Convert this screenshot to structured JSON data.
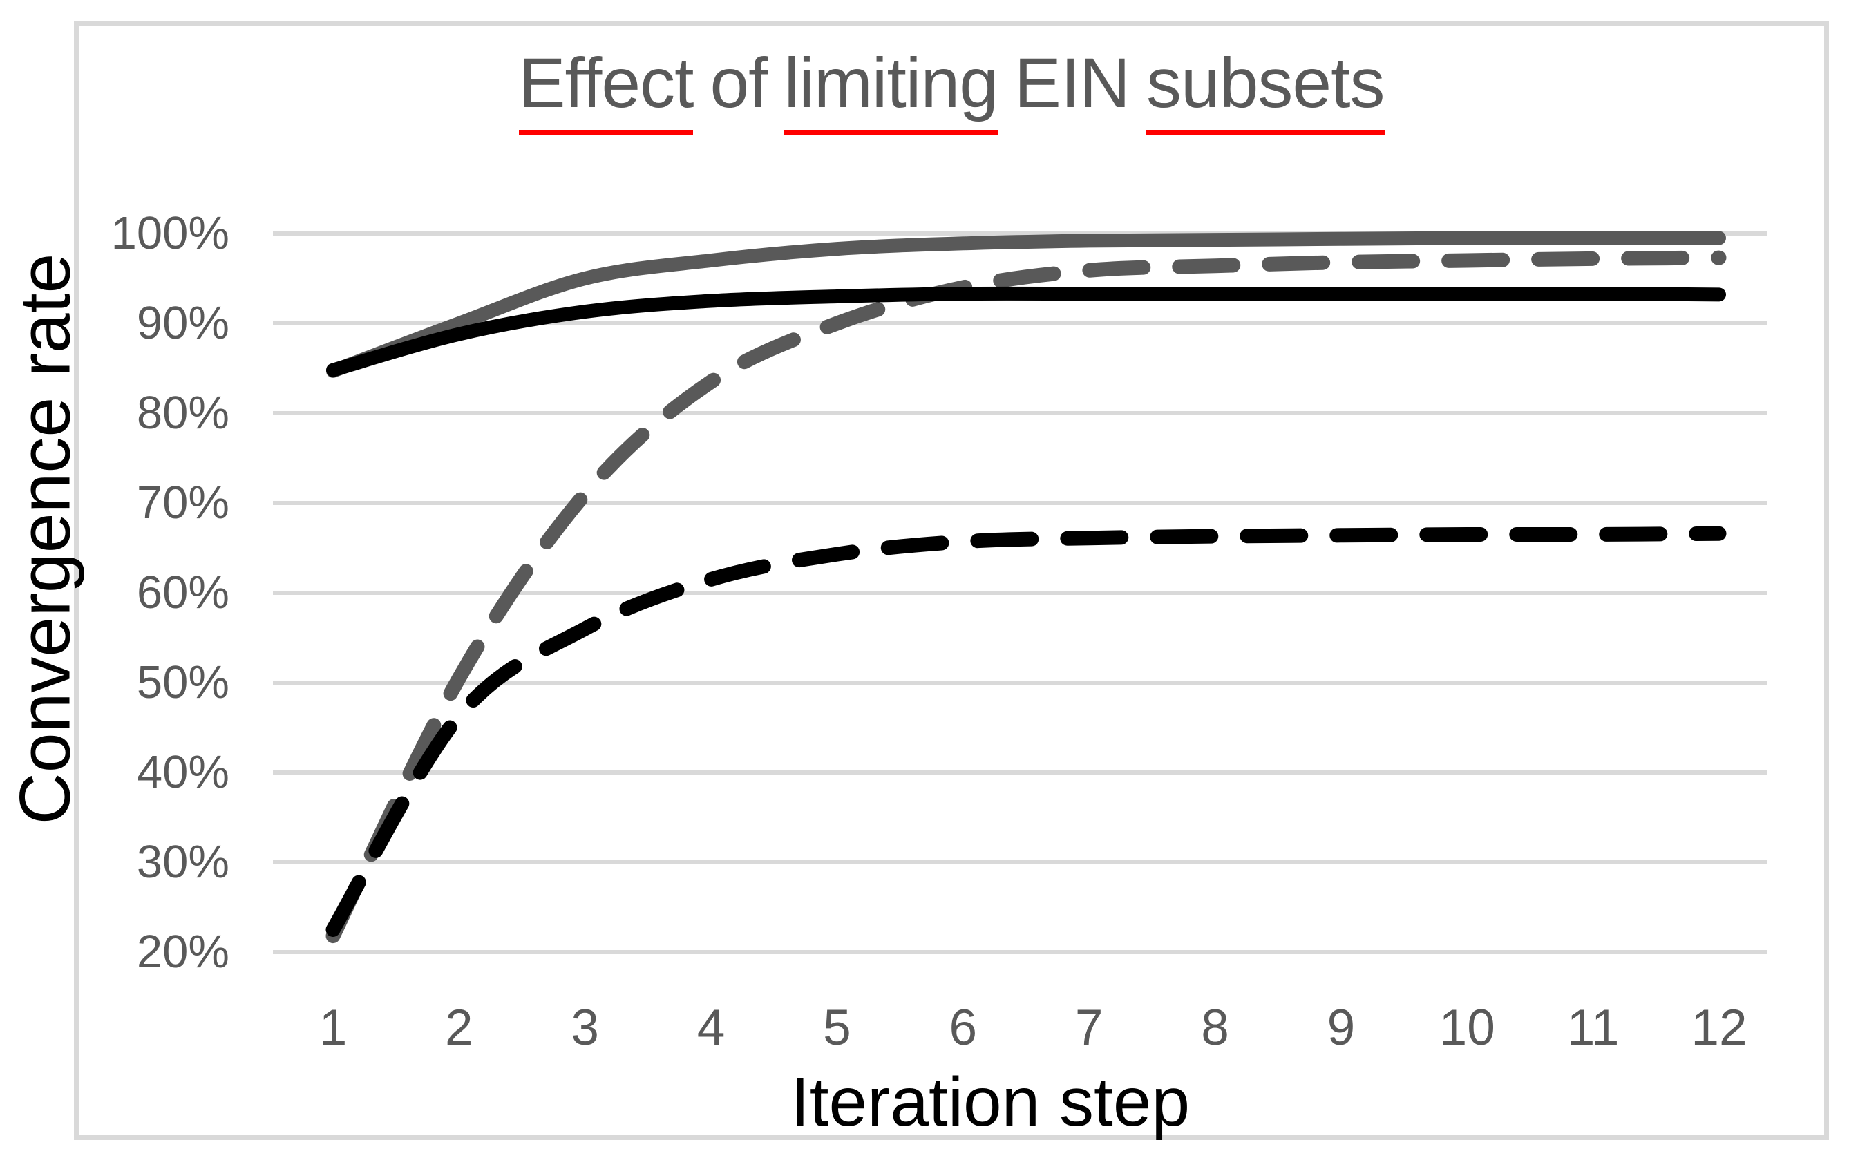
{
  "title": {
    "text": "Effect of limiting EIN subsets",
    "color": "#595959",
    "spellcheck_underline_color": "#ff0000",
    "words": [
      {
        "text": "Effect",
        "underline": true
      },
      {
        "text": "of",
        "underline": false
      },
      {
        "text": "limiting",
        "underline": true
      },
      {
        "text": "EIN",
        "underline": false
      },
      {
        "text": "subsets",
        "underline": true
      }
    ]
  },
  "colors": {
    "gray_series": "#595959",
    "black_series": "#000000",
    "gridline": "#d9d9d9",
    "frame_border": "#d9d9d9",
    "tick_label": "#595959",
    "axis_title": "#000000",
    "background": "#ffffff"
  },
  "chart_data": {
    "type": "line",
    "title": "Effect of limiting EIN subsets",
    "xlabel": "Iteration step",
    "ylabel": "Convergence rate",
    "x": [
      1,
      2,
      3,
      4,
      5,
      6,
      7,
      8,
      9,
      10,
      11,
      12
    ],
    "xtick_labels": [
      "1",
      "2",
      "3",
      "4",
      "5",
      "6",
      "7",
      "8",
      "9",
      "10",
      "11",
      "12"
    ],
    "ytick_labels": [
      "100%",
      "90%",
      "80%",
      "70%",
      "60%",
      "50%",
      "40%",
      "30%",
      "20%"
    ],
    "ylim": [
      20,
      100
    ],
    "ytick_step": 10,
    "grid": true,
    "legend": false,
    "series": [
      {
        "name": "solid-gray",
        "color": "#595959",
        "style": "solid",
        "values": [
          84.7,
          90.0,
          95.0,
          97.0,
          98.3,
          98.9,
          99.2,
          99.3,
          99.4,
          99.5,
          99.5,
          99.5
        ]
      },
      {
        "name": "dashed-gray",
        "color": "#595959",
        "style": "dashed",
        "values": [
          21.8,
          50.5,
          71.0,
          83.5,
          90.0,
          94.0,
          95.9,
          96.4,
          96.8,
          97.0,
          97.2,
          97.3
        ]
      },
      {
        "name": "solid-black",
        "color": "#000000",
        "style": "solid",
        "values": [
          84.8,
          88.8,
          91.3,
          92.5,
          93.0,
          93.3,
          93.3,
          93.3,
          93.3,
          93.3,
          93.3,
          93.2
        ]
      },
      {
        "name": "dashed-black",
        "color": "#000000",
        "style": "dashed",
        "values": [
          22.5,
          46.3,
          56.0,
          61.5,
          64.3,
          65.7,
          66.1,
          66.3,
          66.4,
          66.5,
          66.5,
          66.6
        ]
      }
    ]
  }
}
